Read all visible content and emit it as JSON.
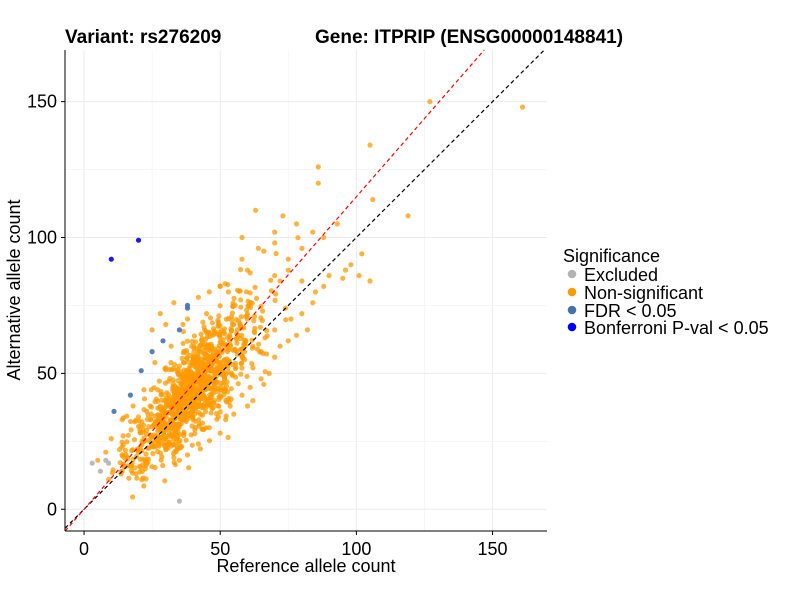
{
  "chart_data": {
    "type": "scatter",
    "title_variant": "Variant: rs276209",
    "title_gene": "Gene: ITPRIP (ENSG00000148841)",
    "xlabel": "Reference allele count",
    "ylabel": "Alternative allele count",
    "xlim": [
      -7,
      170
    ],
    "ylim": [
      -8,
      169
    ],
    "xticks": [
      0,
      50,
      100,
      150
    ],
    "yticks": [
      0,
      50,
      100,
      150
    ],
    "grid": true,
    "legend_position": "right",
    "reference_lines": [
      {
        "name": "identity",
        "slope": 1.0,
        "intercept": 0,
        "color": "#000000",
        "style": "dashed"
      },
      {
        "name": "fitted",
        "slope": 1.15,
        "intercept": 0,
        "color": "#ff0000",
        "style": "dashed"
      }
    ],
    "legend": {
      "title": "Significance",
      "items": [
        {
          "label": "Excluded",
          "color": "#b3b3b3"
        },
        {
          "label": "Non-significant",
          "color": "#ff9900"
        },
        {
          "label": "FDR < 0.05",
          "color": "#4472b0"
        },
        {
          "label": "Bonferroni P-val < 0.05",
          "color": "#0000ff"
        }
      ]
    },
    "series": [
      {
        "name": "Excluded",
        "color": "#b3b3b3",
        "points": [
          [
            3,
            17
          ],
          [
            6,
            14
          ],
          [
            8,
            18
          ],
          [
            9,
            17
          ],
          [
            35,
            3
          ]
        ]
      },
      {
        "name": "FDR < 0.05",
        "color": "#4472b0",
        "points": [
          [
            11,
            36
          ],
          [
            17,
            42
          ],
          [
            21,
            51
          ],
          [
            25,
            58
          ],
          [
            29,
            62
          ],
          [
            35,
            66
          ],
          [
            38,
            74
          ],
          [
            38,
            75
          ]
        ]
      },
      {
        "name": "Bonferroni P-val < 0.05",
        "color": "#0000ff",
        "points": [
          [
            10,
            92
          ],
          [
            20,
            99
          ]
        ]
      },
      {
        "name": "Non-significant",
        "color": "#ff9900",
        "outliers": [
          [
            127,
            150
          ],
          [
            161,
            148
          ],
          [
            105,
            134
          ],
          [
            86,
            126
          ],
          [
            86,
            120
          ],
          [
            106,
            114
          ],
          [
            119,
            108
          ],
          [
            93,
            105
          ],
          [
            102,
            94
          ],
          [
            96,
            88
          ],
          [
            105,
            84
          ],
          [
            101,
            86
          ],
          [
            88,
            100
          ],
          [
            80,
            96
          ],
          [
            70,
            102
          ],
          [
            70,
            98
          ],
          [
            75,
            92
          ],
          [
            66,
            95
          ],
          [
            58,
            92
          ],
          [
            84,
            102
          ],
          [
            70,
            86
          ],
          [
            75,
            88
          ],
          [
            72,
            84
          ],
          [
            80,
            84
          ],
          [
            85,
            80
          ],
          [
            88,
            82
          ],
          [
            98,
            90
          ],
          [
            95,
            85
          ],
          [
            73,
            108
          ],
          [
            78,
            105
          ],
          [
            63,
            110
          ],
          [
            58,
            100
          ],
          [
            64,
            96
          ],
          [
            60,
            88
          ],
          [
            50,
            82
          ],
          [
            53,
            80
          ],
          [
            46,
            80
          ],
          [
            42,
            78
          ],
          [
            33,
            76
          ],
          [
            28,
            72
          ],
          [
            30,
            68
          ],
          [
            25,
            66
          ],
          [
            30,
            52
          ],
          [
            18,
            38
          ],
          [
            14,
            33
          ],
          [
            10,
            26
          ],
          [
            8,
            21
          ],
          [
            5,
            18
          ],
          [
            9,
            11
          ],
          [
            14,
            14
          ],
          [
            14,
            20
          ],
          [
            13,
            22
          ],
          [
            16,
            16
          ],
          [
            20,
            21
          ],
          [
            22,
            25
          ],
          [
            27,
            26
          ],
          [
            30,
            22
          ],
          [
            33,
            19
          ],
          [
            38,
            20
          ],
          [
            35,
            18
          ],
          [
            42,
            24
          ],
          [
            46,
            30
          ],
          [
            50,
            28
          ],
          [
            52,
            33
          ],
          [
            55,
            35
          ],
          [
            60,
            38
          ],
          [
            62,
            40
          ],
          [
            66,
            46
          ],
          [
            65,
            48
          ],
          [
            68,
            50
          ],
          [
            70,
            56
          ],
          [
            72,
            60
          ],
          [
            75,
            62
          ],
          [
            78,
            64
          ],
          [
            82,
            66
          ],
          [
            80,
            72
          ],
          [
            76,
            70
          ],
          [
            74,
            74
          ],
          [
            84,
            76
          ],
          [
            90,
            86
          ],
          [
            70,
            66
          ],
          [
            62,
            60
          ],
          [
            65,
            58
          ],
          [
            58,
            42
          ],
          [
            62,
            52
          ],
          [
            55,
            68
          ],
          [
            60,
            70
          ],
          [
            45,
            72
          ],
          [
            38,
            70
          ],
          [
            32,
            60
          ],
          [
            26,
            54
          ],
          [
            27,
            44
          ],
          [
            22,
            44
          ],
          [
            20,
            34
          ],
          [
            23,
            36
          ],
          [
            28,
            30
          ],
          [
            34,
            26
          ],
          [
            40,
            33
          ],
          [
            47,
            37
          ]
        ],
        "cluster": {
          "n": 1100,
          "seed": 20250101,
          "x_mean": 40,
          "x_sd": 11,
          "slope": 1.05,
          "intercept": 2,
          "resid_sd": 7.5,
          "x_min": 8,
          "x_max": 95
        }
      }
    ]
  }
}
